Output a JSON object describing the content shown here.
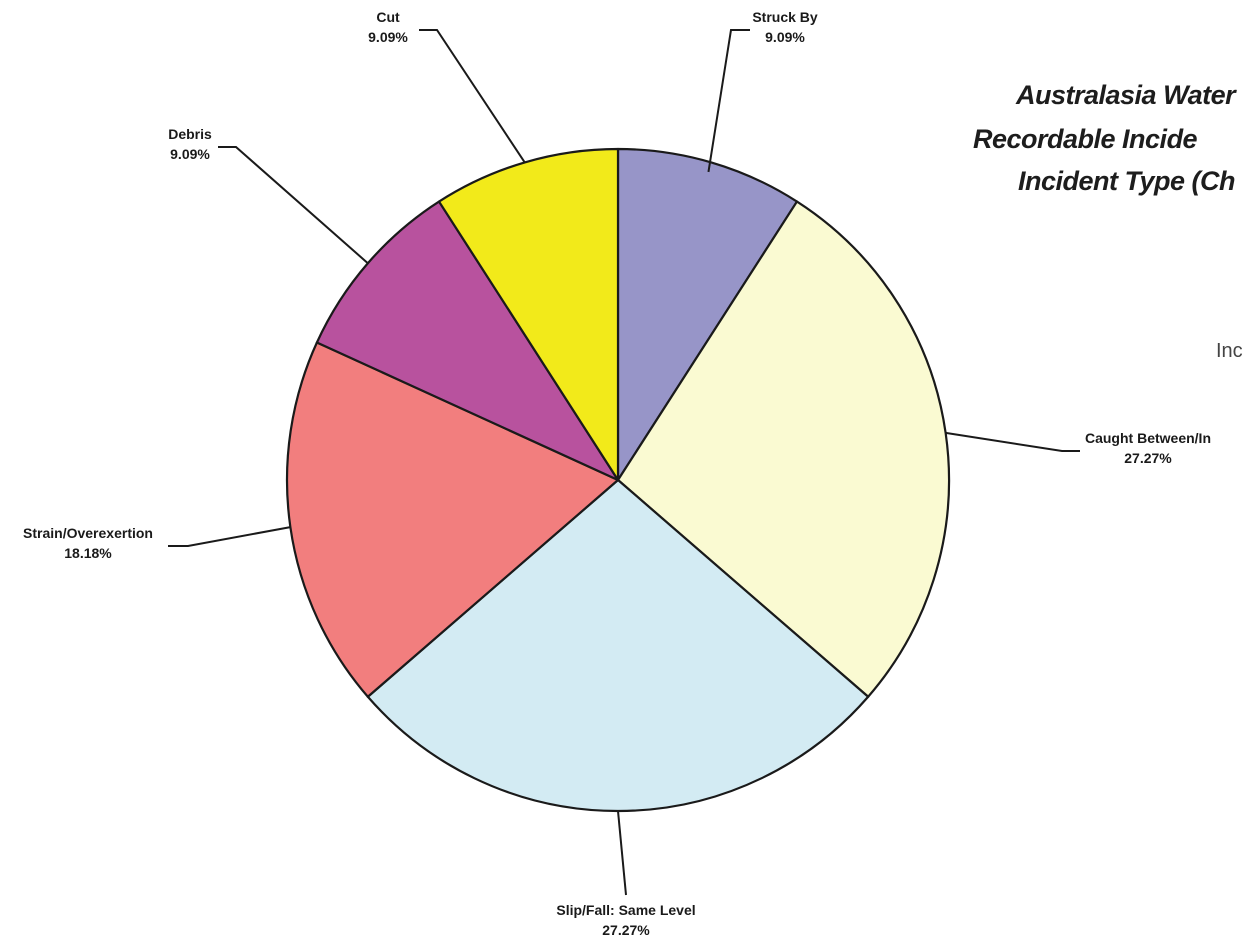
{
  "title": {
    "line1": "Australasia Water",
    "line2": "Recordable Incide",
    "line3": "Incident Type (Ch"
  },
  "legend_title": "Inc",
  "chart_data": {
    "type": "pie",
    "title": "",
    "slices": [
      {
        "label": "Struck By",
        "value": 9.09,
        "value_label": "9.09%",
        "color": "#9795c8"
      },
      {
        "label": "Caught Between/In",
        "value": 27.27,
        "value_label": "27.27%",
        "color": "#fafad2"
      },
      {
        "label": "Slip/Fall: Same Level",
        "value": 27.27,
        "value_label": "27.27%",
        "color": "#d3ebf3"
      },
      {
        "label": "Strain/Overexertion",
        "value": 18.18,
        "value_label": "18.18%",
        "color": "#f27e7e"
      },
      {
        "label": "Debris",
        "value": 9.09,
        "value_label": "9.09%",
        "color": "#b8529e"
      },
      {
        "label": "Cut",
        "value": 9.09,
        "value_label": "9.09%",
        "color": "#f2ea1a"
      }
    ],
    "start_angle_deg": 0,
    "direction": "clockwise"
  }
}
